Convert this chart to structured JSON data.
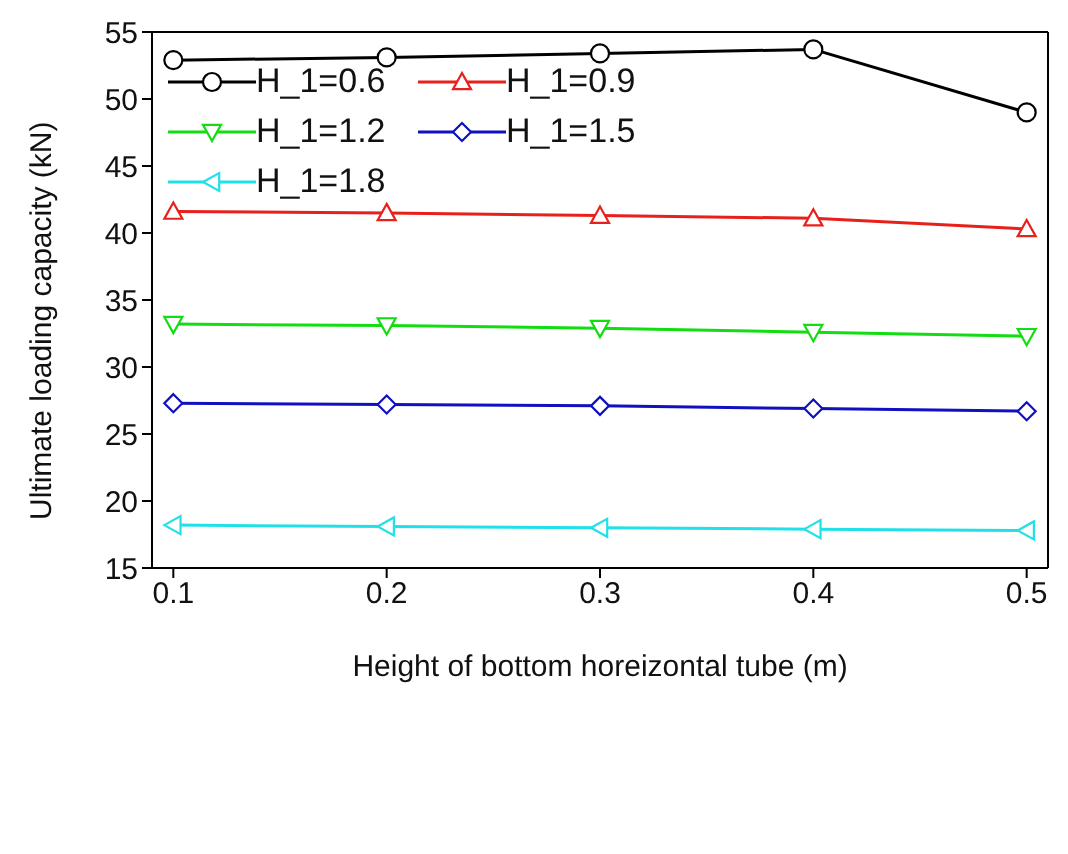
{
  "chart_data": {
    "type": "line",
    "xlabel": "Height of bottom horeizontal tube (m)",
    "ylabel": "Ultimate loading capacity (kN)",
    "x": [
      0.1,
      0.2,
      0.3,
      0.4,
      0.5
    ],
    "series": [
      {
        "name": "H_1=0.6",
        "color": "#000000",
        "marker": "circle",
        "values": [
          52.9,
          53.1,
          53.4,
          53.7,
          49.0
        ]
      },
      {
        "name": "H_1=0.9",
        "color": "#e8201c",
        "marker": "triangle",
        "values": [
          41.6,
          41.5,
          41.3,
          41.1,
          40.3
        ]
      },
      {
        "name": "H_1=1.2",
        "color": "#11dd11",
        "marker": "triangle-down",
        "values": [
          33.2,
          33.1,
          32.9,
          32.6,
          32.3
        ]
      },
      {
        "name": "H_1=1.5",
        "color": "#1010c0",
        "marker": "diamond",
        "values": [
          27.3,
          27.2,
          27.1,
          26.9,
          26.7
        ]
      },
      {
        "name": "H_1=1.8",
        "color": "#22e0e8",
        "marker": "triangle-left",
        "values": [
          18.2,
          18.1,
          18.0,
          17.9,
          17.8
        ]
      }
    ],
    "xlim": [
      0.09,
      0.51
    ],
    "xticks": [
      0.1,
      0.2,
      0.3,
      0.4,
      0.5
    ],
    "ylim": [
      15,
      55
    ],
    "yticks": [
      15,
      20,
      25,
      30,
      35,
      40,
      45,
      50,
      55
    ],
    "grid": false,
    "legend": "top left",
    "line_style": "solid"
  }
}
